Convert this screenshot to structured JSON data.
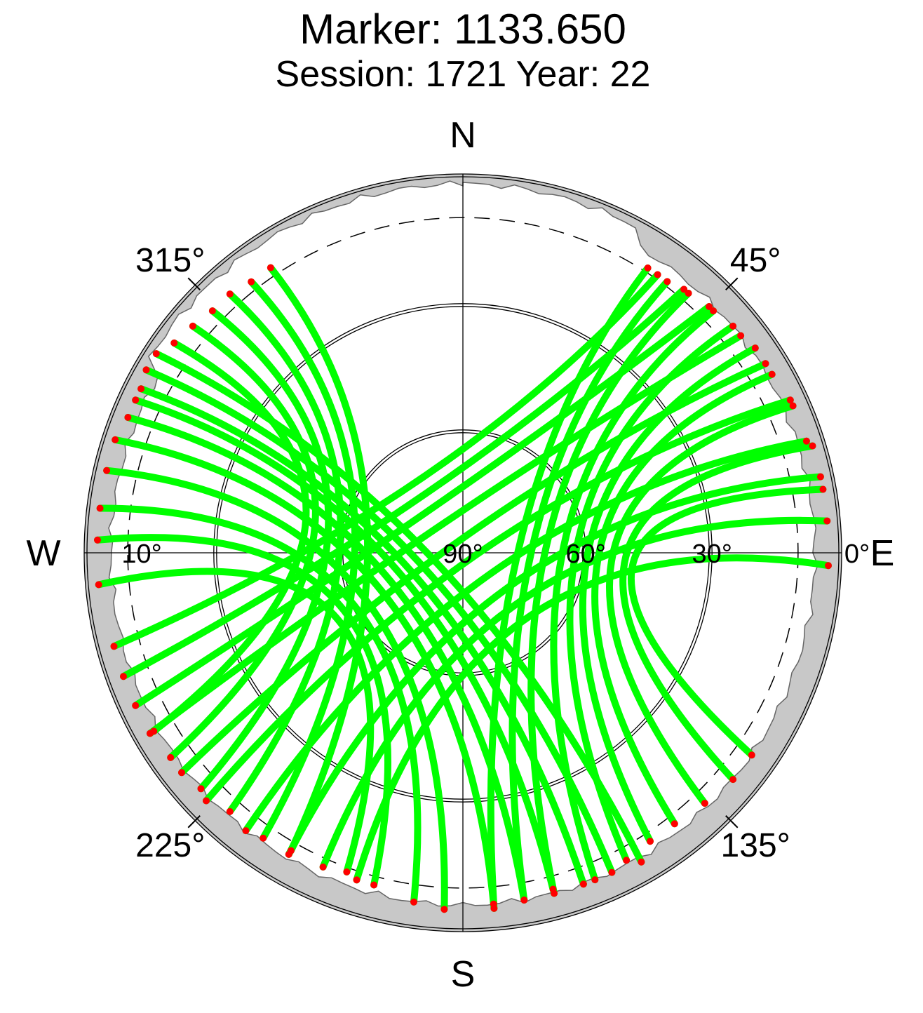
{
  "title": "Marker: 1133.650",
  "subtitle": "Session: 1721 Year: 22",
  "compass": {
    "n": "N",
    "s": "S",
    "e": "E",
    "w": "W"
  },
  "azimuth_labels": [
    {
      "text": "315°",
      "az": 315
    },
    {
      "text": "45°",
      "az": 45
    },
    {
      "text": "225°",
      "az": 225
    },
    {
      "text": "135°",
      "az": 135
    }
  ],
  "elevation_labels": [
    {
      "text": "10°",
      "el": 10
    },
    {
      "text": "90°",
      "el": 90
    },
    {
      "text": "60°",
      "el": 60
    },
    {
      "text": "30°",
      "el": 30
    },
    {
      "text": "0°",
      "el": 0
    }
  ],
  "colors": {
    "track": "#00ff00",
    "endpoint": "#ff0000",
    "mask": "#c8c8c8",
    "ring": "#000000"
  },
  "chart_data": {
    "type": "scatter",
    "projection": "polar-skyplot",
    "title": "Marker: 1133.650",
    "subtitle": "Session: 1721 Year: 22",
    "elevation_range": [
      0,
      90
    ],
    "elevation_circles": [
      0,
      10,
      30,
      60
    ],
    "cutoff_elevation": 10,
    "azimuth_ticks": [
      45,
      135,
      225,
      315
    ],
    "tracks_approx": [
      {
        "az_start": 303,
        "el_start": 3,
        "az_end": 150,
        "el_end": 5
      },
      {
        "az_start": 300,
        "el_start": 3,
        "az_end": 155,
        "el_end": 6
      },
      {
        "az_start": 297,
        "el_start": 4,
        "az_end": 160,
        "el_end": 6
      },
      {
        "az_start": 295,
        "el_start": 4,
        "az_end": 165,
        "el_end": 7
      },
      {
        "az_start": 292,
        "el_start": 4,
        "az_end": 170,
        "el_end": 6
      },
      {
        "az_start": 288,
        "el_start": 3,
        "az_end": 175,
        "el_end": 6
      },
      {
        "az_start": 283,
        "el_start": 3,
        "az_end": 183,
        "el_end": 5
      },
      {
        "az_start": 277,
        "el_start": 3,
        "az_end": 188,
        "el_end": 6
      },
      {
        "az_start": 272,
        "el_start": 3,
        "az_end": 195,
        "el_end": 8
      },
      {
        "az_start": 265,
        "el_start": 3,
        "az_end": 200,
        "el_end": 9
      },
      {
        "az_start": 326,
        "el_start": 8,
        "az_end": 210,
        "el_end": 8
      },
      {
        "az_start": 322,
        "el_start": 8,
        "az_end": 215,
        "el_end": 7
      },
      {
        "az_start": 318,
        "el_start": 7,
        "az_end": 222,
        "el_end": 7
      },
      {
        "az_start": 314,
        "el_start": 7,
        "az_end": 228,
        "el_end": 6
      },
      {
        "az_start": 310,
        "el_start": 6,
        "az_end": 235,
        "el_end": 5
      },
      {
        "az_start": 306,
        "el_start": 5,
        "az_end": 240,
        "el_end": 5
      },
      {
        "az_start": 33,
        "el_start": 9,
        "az_end": 175,
        "el_end": 5
      },
      {
        "az_start": 37,
        "el_start": 9,
        "az_end": 170,
        "el_end": 6
      },
      {
        "az_start": 41,
        "el_start": 8,
        "az_end": 165,
        "el_end": 6
      },
      {
        "az_start": 46,
        "el_start": 7,
        "az_end": 158,
        "el_end": 6
      },
      {
        "az_start": 50,
        "el_start": 6,
        "az_end": 152,
        "el_end": 7
      },
      {
        "az_start": 55,
        "el_start": 5,
        "az_end": 147,
        "el_end": 8
      },
      {
        "az_start": 60,
        "el_start": 5,
        "az_end": 142,
        "el_end": 8
      },
      {
        "az_start": 66,
        "el_start": 4,
        "az_end": 136,
        "el_end": 7
      },
      {
        "az_start": 73,
        "el_start": 3,
        "az_end": 130,
        "el_end": 6
      },
      {
        "az_start": 80,
        "el_start": 3,
        "az_end": 125,
        "el_end": 6
      },
      {
        "az_start": 35,
        "el_start": 9,
        "az_end": 255,
        "el_end": 4
      },
      {
        "az_start": 40,
        "el_start": 8,
        "az_end": 250,
        "el_end": 4
      },
      {
        "az_start": 45,
        "el_start": 7,
        "az_end": 245,
        "el_end": 4
      },
      {
        "az_start": 52,
        "el_start": 6,
        "az_end": 240,
        "el_end": 4
      },
      {
        "az_start": 58,
        "el_start": 5,
        "az_end": 232,
        "el_end": 5
      },
      {
        "az_start": 65,
        "el_start": 4,
        "az_end": 226,
        "el_end": 5
      },
      {
        "az_start": 72,
        "el_start": 4,
        "az_end": 218,
        "el_end": 6
      },
      {
        "az_start": 78,
        "el_start": 3,
        "az_end": 210,
        "el_end": 7
      },
      {
        "az_start": 85,
        "el_start": 3,
        "az_end": 204,
        "el_end": 8
      },
      {
        "az_start": 92,
        "el_start": 3,
        "az_end": 198,
        "el_end": 8
      }
    ]
  }
}
